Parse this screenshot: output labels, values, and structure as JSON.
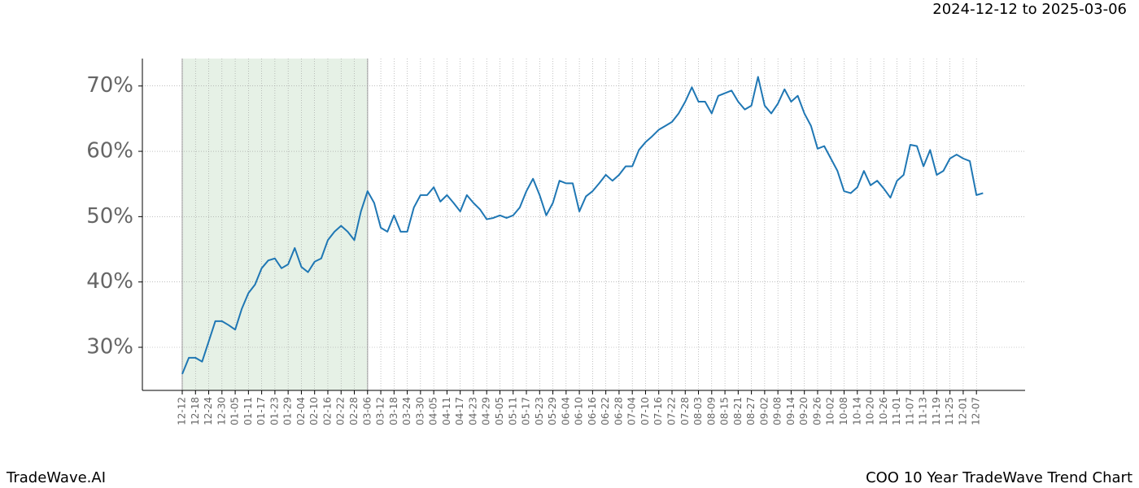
{
  "chart_data": {
    "type": "line",
    "date_range": "2024-12-12 to 2025-03-06",
    "brand": "TradeWave.AI",
    "title": "COO 10 Year TradeWave Trend Chart",
    "categories": [
      "12-12",
      null,
      "12-18",
      null,
      "12-24",
      null,
      "12-30",
      null,
      "01-05",
      null,
      "01-11",
      null,
      "01-17",
      null,
      "01-23",
      null,
      "01-29",
      null,
      "02-04",
      null,
      "02-10",
      null,
      "02-16",
      null,
      "02-22",
      null,
      "02-28",
      null,
      "03-06",
      null,
      "03-12",
      null,
      "03-18",
      null,
      "03-24",
      null,
      "03-30",
      null,
      "04-05",
      null,
      "04-11",
      null,
      "04-17",
      null,
      "04-23",
      null,
      "04-29",
      null,
      "05-05",
      null,
      "05-11",
      null,
      "05-17",
      null,
      "05-23",
      null,
      "05-29",
      null,
      "06-04",
      null,
      "06-10",
      null,
      "06-16",
      null,
      "06-22",
      null,
      "06-28",
      null,
      "07-04",
      null,
      "07-10",
      null,
      "07-16",
      null,
      "07-22",
      null,
      "07-28",
      null,
      "08-03",
      null,
      "08-09",
      null,
      "08-15",
      null,
      "08-21",
      null,
      "08-27",
      null,
      "09-02",
      null,
      "09-08",
      null,
      "09-14",
      null,
      "09-20",
      null,
      "09-26",
      null,
      "10-02",
      null,
      "10-08",
      null,
      "10-14",
      null,
      "10-20",
      null,
      "10-26",
      null,
      "11-01",
      null,
      "11-07",
      null,
      "11-13",
      null,
      "11-19",
      null,
      "11-25",
      null,
      "12-01",
      null,
      "12-07",
      null
    ],
    "series": [
      {
        "color": "#1f77b4",
        "values": [
          25.9,
          28.4,
          28.4,
          27.8,
          30.9,
          34,
          34,
          33.4,
          32.7,
          35.9,
          38.3,
          39.6,
          42.1,
          43.3,
          43.6,
          42.1,
          42.7,
          45.2,
          42.3,
          41.5,
          43.1,
          43.6,
          46.4,
          47.7,
          48.6,
          47.7,
          46.4,
          50.8,
          53.9,
          52.1,
          48.3,
          47.7,
          50.2,
          47.7,
          47.7,
          51.4,
          53.3,
          53.3,
          54.5,
          52.3,
          53.3,
          52.1,
          50.8,
          53.3,
          52.1,
          51.1,
          49.6,
          49.8,
          50.2,
          49.8,
          50.2,
          51.4,
          53.9,
          55.8,
          53.3,
          50.2,
          52.1,
          55.5,
          55.1,
          55.1,
          50.8,
          53.1,
          53.9,
          55.1,
          56.4,
          55.5,
          56.4,
          57.7,
          57.7,
          60.2,
          61.4,
          62.3,
          63.3,
          63.9,
          64.5,
          65.8,
          67.6,
          69.8,
          67.6,
          67.6,
          65.8,
          68.5,
          68.9,
          69.3,
          67.6,
          66.4,
          67,
          71.4,
          67,
          65.8,
          67.3,
          69.5,
          67.6,
          68.5,
          65.8,
          63.9,
          60.4,
          60.8,
          58.9,
          57,
          53.9,
          53.6,
          54.5,
          57,
          54.8,
          55.5,
          54.3,
          52.9,
          55.5,
          56.4,
          61,
          60.8,
          57.7,
          60.2,
          56.4,
          57,
          58.9,
          59.5,
          58.9,
          58.5,
          53.3,
          53.6
        ]
      }
    ],
    "highlight": [
      "12-12",
      "03-06"
    ],
    "highlight_color": "#e6f1e6",
    "ylim": [
      23.4,
      74.2
    ],
    "yticks": [
      {
        "value": 30,
        "label": "30%"
      },
      {
        "value": 40,
        "label": "40%"
      },
      {
        "value": 50,
        "label": "50%"
      },
      {
        "value": 60,
        "label": "60%"
      },
      {
        "value": 70,
        "label": "70%"
      }
    ],
    "grid": true
  }
}
